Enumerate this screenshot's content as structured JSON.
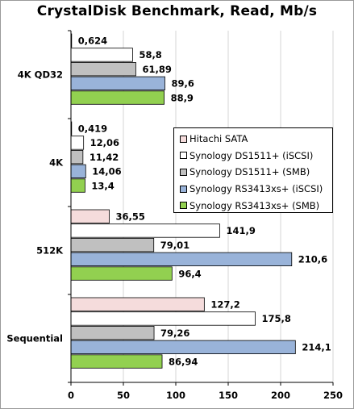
{
  "chart_data": {
    "type": "bar",
    "orientation": "horizontal",
    "title": "CrystalDisk Benchmark, Read, Mb/s",
    "categories": [
      "4K QD32",
      "4K",
      "512K",
      "Sequential"
    ],
    "series": [
      {
        "name": "Hitachi SATA",
        "color": "#f5dcdc",
        "values": [
          0.624,
          0.419,
          36.55,
          127.2
        ],
        "labels": [
          "0,624",
          "0,419",
          "36,55",
          "127,2"
        ]
      },
      {
        "name": "Synology DS1511+ (iSCSI)",
        "color": "#ffffff",
        "values": [
          58.8,
          12.06,
          141.9,
          175.8
        ],
        "labels": [
          "58,8",
          "12,06",
          "141,9",
          "175,8"
        ]
      },
      {
        "name": "Synology DS1511+ (SMB)",
        "color": "#c0c0c0",
        "values": [
          61.89,
          11.42,
          79.01,
          79.26
        ],
        "labels": [
          "61,89",
          "11,42",
          "79,01",
          "79,26"
        ]
      },
      {
        "name": "Synology RS3413xs+ (iSCSI)",
        "color": "#99b3d9",
        "values": [
          89.6,
          14.06,
          210.6,
          214.1
        ],
        "labels": [
          "89,6",
          "14,06",
          "210,6",
          "214,1"
        ]
      },
      {
        "name": "Synology RS3413xs+ (SMB)",
        "color": "#92d050",
        "values": [
          88.9,
          13.4,
          96.4,
          86.94
        ],
        "labels": [
          "88,9",
          "13,4",
          "96,4",
          "86,94"
        ]
      }
    ],
    "xlim": [
      0,
      250
    ],
    "xticks": [
      0,
      50,
      100,
      150,
      200,
      250
    ],
    "xtick_labels": [
      "0",
      "50",
      "100",
      "150",
      "200",
      "250"
    ],
    "xlabel": "",
    "ylabel": "",
    "grid": "vertical",
    "legend_position": "right-inside"
  }
}
